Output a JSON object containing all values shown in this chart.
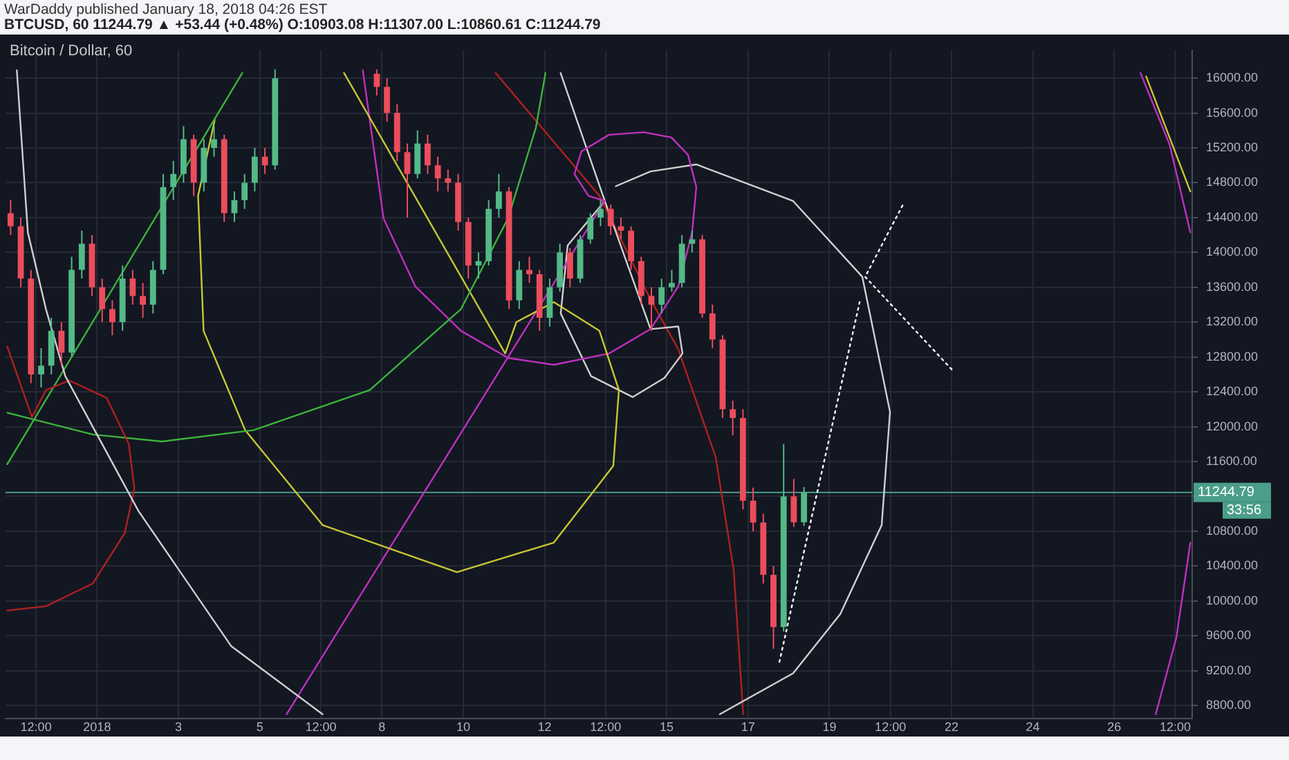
{
  "chart_data": {
    "type": "candlestick",
    "title": "Bitcoin / Dollar, 60",
    "subtitle": "BTCUSD, 60  11244.79 ▲ +53.44 (+0.48%) O:10903.08 H:11307.00 L:10860.61 C:11244.79",
    "annotations": [
      "WarDaddy published January 18, 2018 04:26 EST",
      "33:56"
    ],
    "x": [
      "2017-12-29T21:00",
      "2017-12-30T03:00",
      "2017-12-30T09:00",
      "2017-12-30T15:00",
      "2017-12-30T21:00",
      "2017-12-31T03:00",
      "2017-12-31T09:00",
      "2017-12-31T15:00",
      "2017-12-31T21:00",
      "2018-01-01T03:00",
      "2018-01-01T09:00",
      "2018-01-01T15:00",
      "2018-01-01T21:00",
      "2018-01-02T03:00",
      "2018-01-02T09:00",
      "2018-01-02T15:00",
      "2018-01-02T21:00",
      "2018-01-03T03:00",
      "2018-01-03T09:00",
      "2018-01-03T15:00",
      "2018-01-03T21:00",
      "2018-01-04T03:00",
      "2018-01-04T09:00",
      "2018-01-04T15:00",
      "2018-01-04T21:00",
      "2018-01-05T03:00",
      "2018-01-05T09:00",
      "2018-01-07T21:00",
      "2018-01-08T03:00",
      "2018-01-08T09:00",
      "2018-01-08T15:00",
      "2018-01-08T21:00",
      "2018-01-09T03:00",
      "2018-01-09T09:00",
      "2018-01-09T15:00",
      "2018-01-09T21:00",
      "2018-01-10T03:00",
      "2018-01-10T09:00",
      "2018-01-10T15:00",
      "2018-01-10T21:00",
      "2018-01-11T03:00",
      "2018-01-11T09:00",
      "2018-01-11T15:00",
      "2018-01-11T21:00",
      "2018-01-12T03:00",
      "2018-01-12T09:00",
      "2018-01-12T15:00",
      "2018-01-12T21:00",
      "2018-01-13T03:00",
      "2018-01-13T09:00",
      "2018-01-13T15:00",
      "2018-01-13T21:00",
      "2018-01-14T03:00",
      "2018-01-14T09:00",
      "2018-01-14T15:00",
      "2018-01-14T21:00",
      "2018-01-15T03:00",
      "2018-01-15T09:00",
      "2018-01-15T15:00",
      "2018-01-15T21:00",
      "2018-01-16T03:00",
      "2018-01-16T09:00",
      "2018-01-16T15:00",
      "2018-01-16T21:00",
      "2018-01-17T03:00",
      "2018-01-17T09:00",
      "2018-01-17T15:00",
      "2018-01-17T21:00",
      "2018-01-18T03:00",
      "2018-01-18T09:00"
    ],
    "ohlc": [
      [
        14450,
        14600,
        14200,
        14300
      ],
      [
        14300,
        14400,
        13600,
        13700
      ],
      [
        13700,
        13800,
        12500,
        12600
      ],
      [
        12600,
        12900,
        12450,
        12700
      ],
      [
        12700,
        13250,
        12600,
        13100
      ],
      [
        13100,
        13200,
        12700,
        12850
      ],
      [
        12850,
        13950,
        12800,
        13800
      ],
      [
        13800,
        14250,
        13700,
        14100
      ],
      [
        14100,
        14200,
        13500,
        13600
      ],
      [
        13600,
        13700,
        13200,
        13350
      ],
      [
        13350,
        13450,
        13050,
        13200
      ],
      [
        13200,
        13850,
        13100,
        13700
      ],
      [
        13700,
        13800,
        13400,
        13500
      ],
      [
        13500,
        13650,
        13250,
        13400
      ],
      [
        13400,
        13900,
        13300,
        13800
      ],
      [
        13800,
        14900,
        13750,
        14750
      ],
      [
        14750,
        15050,
        14600,
        14900
      ],
      [
        14900,
        15450,
        14800,
        15300
      ],
      [
        15300,
        15350,
        14650,
        14800
      ],
      [
        14800,
        15300,
        14700,
        15200
      ],
      [
        15200,
        15450,
        15100,
        15300
      ],
      [
        15300,
        15350,
        14350,
        14450
      ],
      [
        14450,
        14700,
        14350,
        14600
      ],
      [
        14600,
        14900,
        14500,
        14800
      ],
      [
        14800,
        15200,
        14700,
        15100
      ],
      [
        15100,
        15200,
        14900,
        15000
      ],
      [
        15000,
        16100,
        14950,
        16000
      ],
      [
        16050,
        16100,
        15800,
        15900
      ],
      [
        15900,
        16000,
        15500,
        15600
      ],
      [
        15600,
        15700,
        15050,
        15150
      ],
      [
        15150,
        15250,
        14400,
        14900
      ],
      [
        14900,
        15400,
        14850,
        15250
      ],
      [
        15250,
        15350,
        14900,
        15000
      ],
      [
        15000,
        15100,
        14700,
        14850
      ],
      [
        14850,
        14950,
        14700,
        14800
      ],
      [
        14800,
        14900,
        14250,
        14350
      ],
      [
        14350,
        14400,
        13700,
        13850
      ],
      [
        13850,
        14000,
        13700,
        13900
      ],
      [
        13900,
        14600,
        13850,
        14500
      ],
      [
        14500,
        14900,
        14400,
        14700
      ],
      [
        14700,
        14750,
        13350,
        13450
      ],
      [
        13450,
        13900,
        13350,
        13800
      ],
      [
        13800,
        13950,
        13650,
        13750
      ],
      [
        13750,
        13800,
        13100,
        13250
      ],
      [
        13250,
        13700,
        13150,
        13600
      ],
      [
        13600,
        14100,
        13550,
        14000
      ],
      [
        14000,
        14050,
        13600,
        13700
      ],
      [
        13700,
        14200,
        13650,
        14150
      ],
      [
        14150,
        14450,
        14100,
        14400
      ],
      [
        14400,
        14600,
        14300,
        14500
      ],
      [
        14500,
        14550,
        14200,
        14300
      ],
      [
        14300,
        14400,
        14150,
        14250
      ],
      [
        14250,
        14300,
        13800,
        13900
      ],
      [
        13900,
        13950,
        13400,
        13500
      ],
      [
        13500,
        13600,
        13100,
        13400
      ],
      [
        13400,
        13700,
        13300,
        13600
      ],
      [
        13600,
        13800,
        13550,
        13650
      ],
      [
        13650,
        14200,
        13600,
        14100
      ],
      [
        14100,
        14250,
        14000,
        14150
      ],
      [
        14150,
        14200,
        13250,
        13300
      ],
      [
        13300,
        13400,
        12900,
        13000
      ],
      [
        13000,
        13050,
        12100,
        12200
      ],
      [
        12200,
        12300,
        11900,
        12100
      ],
      [
        12100,
        12200,
        11050,
        11150
      ],
      [
        11150,
        11300,
        10800,
        10900
      ],
      [
        10900,
        11000,
        10200,
        10300
      ],
      [
        10300,
        10400,
        9450,
        9700
      ],
      [
        9700,
        11800,
        9650,
        11200
      ],
      [
        11200,
        11400,
        10850,
        10903.08
      ],
      [
        10903.08,
        11307.0,
        10860.61,
        11244.79
      ]
    ],
    "colors": [
      "#eb4d5c",
      "#eb4d5c",
      "#eb4d5c",
      "#53b987",
      "#53b987",
      "#eb4d5c",
      "#53b987",
      "#53b987",
      "#eb4d5c",
      "#eb4d5c",
      "#eb4d5c",
      "#53b987",
      "#eb4d5c",
      "#eb4d5c",
      "#53b987",
      "#53b987",
      "#53b987",
      "#53b987",
      "#eb4d5c",
      "#53b987",
      "#53b987",
      "#eb4d5c",
      "#53b987",
      "#53b987",
      "#53b987",
      "#eb4d5c",
      "#53b987",
      "#eb4d5c",
      "#eb4d5c",
      "#eb4d5c",
      "#eb4d5c",
      "#53b987",
      "#eb4d5c",
      "#eb4d5c",
      "#eb4d5c",
      "#eb4d5c",
      "#eb4d5c",
      "#53b987",
      "#53b987",
      "#53b987",
      "#eb4d5c",
      "#53b987",
      "#eb4d5c",
      "#eb4d5c",
      "#53b987",
      "#53b987",
      "#eb4d5c",
      "#53b987",
      "#53b987",
      "#53b987",
      "#eb4d5c",
      "#eb4d5c",
      "#eb4d5c",
      "#eb4d5c",
      "#eb4d5c",
      "#53b987",
      "#53b987",
      "#53b987",
      "#53b987",
      "#eb4d5c",
      "#eb4d5c",
      "#eb4d5c",
      "#eb4d5c",
      "#eb4d5c",
      "#eb4d5c",
      "#eb4d5c",
      "#eb4d5c",
      "#53b987",
      "#eb4d5c",
      "#53b987"
    ],
    "series": [
      {
        "type": "line",
        "color": "#d0d0d0",
        "line_style": "solid",
        "x": [
          "2017-12-30T00:40",
          "2017-12-30T07:10",
          "2017-12-30T17:50",
          "2017-12-31T05:15",
          "2018-01-02T00:30",
          "2018-01-04T07:10",
          "2018-01-06T13:00"
        ],
        "values": [
          16090,
          14230,
          13350,
          12580,
          11030,
          9480,
          8700
        ]
      },
      {
        "type": "line",
        "color": "#b02020",
        "line_style": "solid",
        "x": [
          "2017-12-29T19:00",
          "2017-12-30T09:35",
          "2017-12-30T17:50",
          "2017-12-31T07:40",
          "2018-01-01T05:40",
          "2018-01-01T18:45",
          "2018-01-01T22:00",
          "2018-01-01T16:20",
          "2017-12-31T21:30",
          "2017-12-30T17:50",
          "2017-12-29T19:00"
        ],
        "values": [
          12920,
          12110,
          12420,
          12530,
          12330,
          11800,
          11290,
          10780,
          10200,
          9940,
          9890
        ]
      },
      {
        "type": "line",
        "color": "#3cb43c",
        "line_style": "solid",
        "x": [
          "2017-12-29T19:00",
          "2017-12-31T21:30",
          "2018-01-02T14:20",
          "2018-01-04T20:15",
          "2018-01-07T16:50",
          "2018-01-09T22:40",
          "2018-01-11T02:25",
          "2018-01-11T18:50",
          "2018-01-12T00:30"
        ],
        "values": [
          12160,
          11910,
          11830,
          11960,
          12420,
          13350,
          14390,
          15430,
          16060
        ]
      },
      {
        "type": "line",
        "color": "#3cb43c",
        "line_style": "solid",
        "x": [
          "2017-12-29T19:00",
          "2018-01-04T13:40"
        ],
        "values": [
          11570,
          16060
        ]
      },
      {
        "type": "line",
        "color": "#c8c832",
        "line_style": "solid",
        "x": [
          "2018-01-03T21:25",
          "2018-01-03T11:35",
          "2018-01-03T14:50",
          "2018-01-04T15:20",
          "2018-01-06T13:05",
          "2018-01-09T20:15",
          "2018-01-12T05:25",
          "2018-01-13T16:30",
          "2018-01-13T19:50",
          "2018-01-13T08:20",
          "2018-01-12T05:25",
          "2018-01-11T07:20",
          "2018-01-11T00:45",
          "2018-01-07T01:40"
        ],
        "values": [
          15520,
          14650,
          13100,
          11960,
          10870,
          10330,
          10670,
          11550,
          12420,
          13100,
          13430,
          13200,
          12840,
          16060
        ]
      },
      {
        "type": "line",
        "color": "#c030c0",
        "line_style": "solid",
        "x": [
          "2018-01-07T12:45",
          "2018-01-08T01:00",
          "2018-01-08T19:45",
          "2018-01-09T22:40",
          "2018-01-11T02:25",
          "2018-01-12T05:25",
          "2018-01-13T14:00",
          "2018-01-14T14:30",
          "2018-01-15T06:50",
          "2018-01-15T15:00",
          "2018-01-15T17:30",
          "2018-01-15T12:35",
          "2018-01-15T02:45",
          "2018-01-14T10:25",
          "2018-01-13T14:00",
          "2018-01-12T21:45",
          "2018-01-12T17:35",
          "2018-01-13T01:50",
          "2018-01-13T11:30",
          "2018-01-05T15:50"
        ],
        "values": [
          16090,
          14390,
          13610,
          13100,
          12790,
          12710,
          12840,
          13120,
          13610,
          14230,
          14750,
          15120,
          15320,
          15380,
          15350,
          15160,
          14900,
          14650,
          14590,
          8700
        ]
      },
      {
        "type": "line",
        "color": "#d0d0d0",
        "line_style": "solid",
        "x": [
          "2018-01-12T09:25",
          "2018-01-13T11:30",
          "2018-01-14T14:30",
          "2018-01-15T06:50",
          "2018-01-15T09:20",
          "2018-01-14T22:40",
          "2018-01-14T03:55",
          "2018-01-13T03:25",
          "2018-01-12T09:30",
          "2018-01-12T13:35",
          "2018-01-13T11:30"
        ],
        "values": [
          16060,
          14590,
          13120,
          13150,
          12840,
          12560,
          12340,
          12580,
          13300,
          14080,
          14590
        ]
      },
      {
        "type": "line",
        "color": "#d0d0d0",
        "line_style": "solid",
        "x": [
          "2018-01-13T18:00",
          "2018-01-14T14:30",
          "2018-01-15T17:30",
          "2018-01-18T02:35",
          "2018-01-19T19:25",
          "2018-01-20T11:45",
          "2018-01-20T06:50",
          "2018-01-19T06:25",
          "2018-01-18T02:35",
          "2018-01-16T07:20"
        ],
        "values": [
          14760,
          14930,
          15010,
          14590,
          13720,
          12170,
          10870,
          9850,
          9170,
          8700
        ]
      },
      {
        "type": "line",
        "color": "#b02020",
        "line_style": "solid",
        "x": [
          "2018-01-10T19:05",
          "2018-01-13T08:20",
          "2018-01-14T14:30",
          "2018-01-15T06:50",
          "2018-01-16T04:55",
          "2018-01-16T15:30",
          "2018-01-16T21:10"
        ],
        "values": [
          16060,
          14650,
          13460,
          12890,
          11650,
          10360,
          8700
        ]
      },
      {
        "type": "line",
        "color": "#c8c832",
        "line_style": "solid",
        "x": [
          "2018-01-26T18:50",
          "2018-01-27T20:55"
        ],
        "values": [
          16020,
          14700
        ]
      },
      {
        "type": "line",
        "color": "#c030c0",
        "line_style": "solid",
        "x": [
          "2018-01-26T15:30",
          "2018-01-27T08:40",
          "2018-01-27T20:55"
        ],
        "values": [
          16060,
          15240,
          14230
        ]
      },
      {
        "type": "line",
        "color": "#c030c0",
        "line_style": "solid",
        "x": [
          "2018-01-27T00:30",
          "2018-01-27T12:40",
          "2018-01-27T20:55"
        ],
        "values": [
          8700,
          9580,
          10670
        ]
      },
      {
        "type": "line",
        "color": "#ffffff",
        "line_style": "dotted",
        "x": [
          "2018-01-17T18:30",
          "2018-01-19T17:50"
        ],
        "values": [
          9300,
          13430
        ]
      },
      {
        "type": "line",
        "color": "#ffffff",
        "line_style": "dotted",
        "x": [
          "2018-01-20T19:10",
          "2018-01-19T21:05",
          "2018-01-22T00:30"
        ],
        "values": [
          14540,
          13720,
          12650
        ]
      }
    ],
    "ref_lines": [
      {
        "axis": "y",
        "value": 11244.79,
        "label": "11244.79",
        "color": "#4a9e8a"
      }
    ],
    "xlim": [
      "2017-12-29T18:00",
      "2018-01-27T22:00"
    ],
    "ylim": [
      8650,
      16320
    ],
    "xticks": [
      {
        "value": "2017-12-30T12:00",
        "label": "12:00"
      },
      {
        "value": "2018-01-01",
        "label": "2018"
      },
      {
        "value": "2018-01-03",
        "label": "3"
      },
      {
        "value": "2018-01-05",
        "label": "5"
      },
      {
        "value": "2018-01-06T12:00",
        "label": "12:00"
      },
      {
        "value": "2018-01-08",
        "label": "8"
      },
      {
        "value": "2018-01-10",
        "label": "10"
      },
      {
        "value": "2018-01-12",
        "label": "12"
      },
      {
        "value": "2018-01-13T12:00",
        "label": "12:00"
      },
      {
        "value": "2018-01-15",
        "label": "15"
      },
      {
        "value": "2018-01-17",
        "label": "17"
      },
      {
        "value": "2018-01-19",
        "label": "19"
      },
      {
        "value": "2018-01-20T12:00",
        "label": "12:00"
      },
      {
        "value": "2018-01-22",
        "label": "22"
      },
      {
        "value": "2018-01-24",
        "label": "24"
      },
      {
        "value": "2018-01-26",
        "label": "26"
      },
      {
        "value": "2018-01-27T12:00",
        "label": "12:00"
      }
    ],
    "yticks": [
      {
        "value": 8800,
        "label": "8800.00"
      },
      {
        "value": 9200,
        "label": "9200.00"
      },
      {
        "value": 9600,
        "label": "9600.00"
      },
      {
        "value": 10000,
        "label": "10000.00"
      },
      {
        "value": 10400,
        "label": "10400.00"
      },
      {
        "value": 10800,
        "label": "10800.00"
      },
      {
        "value": 11200,
        "label": null
      },
      {
        "value": 11600,
        "label": "11600.00"
      },
      {
        "value": 12000,
        "label": "12000.00"
      },
      {
        "value": 12400,
        "label": "12400.00"
      },
      {
        "value": 12800,
        "label": "12800.00"
      },
      {
        "value": 13200,
        "label": "13200.00"
      },
      {
        "value": 13600,
        "label": "13600.00"
      },
      {
        "value": 14000,
        "label": "14000.00"
      },
      {
        "value": 14400,
        "label": "14400.00"
      },
      {
        "value": 14800,
        "label": "14800.00"
      },
      {
        "value": 15200,
        "label": "15200.00"
      },
      {
        "value": 15600,
        "label": "15600.00"
      },
      {
        "value": 16000,
        "label": "16000.00"
      }
    ],
    "grid": true,
    "marker": "none"
  }
}
